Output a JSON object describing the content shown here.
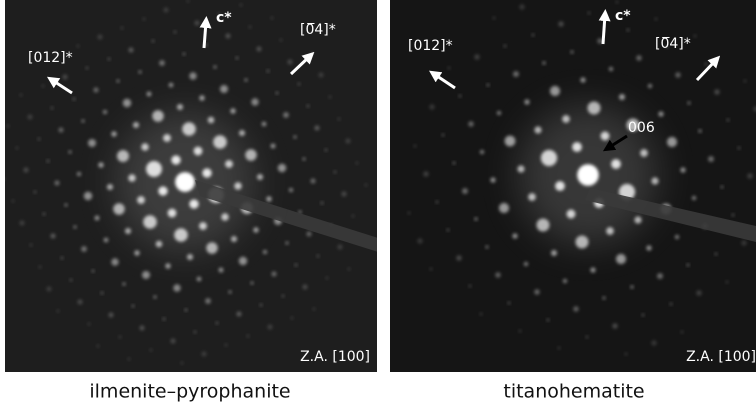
{
  "panels": [
    {
      "direction_labels": [
        "[012]*",
        "c*",
        "[0̅4]*"
      ],
      "zone_axis": "Z.A. [100]",
      "caption": "ilmenite–pyrophanite"
    },
    {
      "direction_labels": [
        "[012]*",
        "c*",
        "[0̅4]*"
      ],
      "zone_axis": "Z.A. [100]",
      "annotation": "006",
      "caption": "titanohematite"
    }
  ]
}
